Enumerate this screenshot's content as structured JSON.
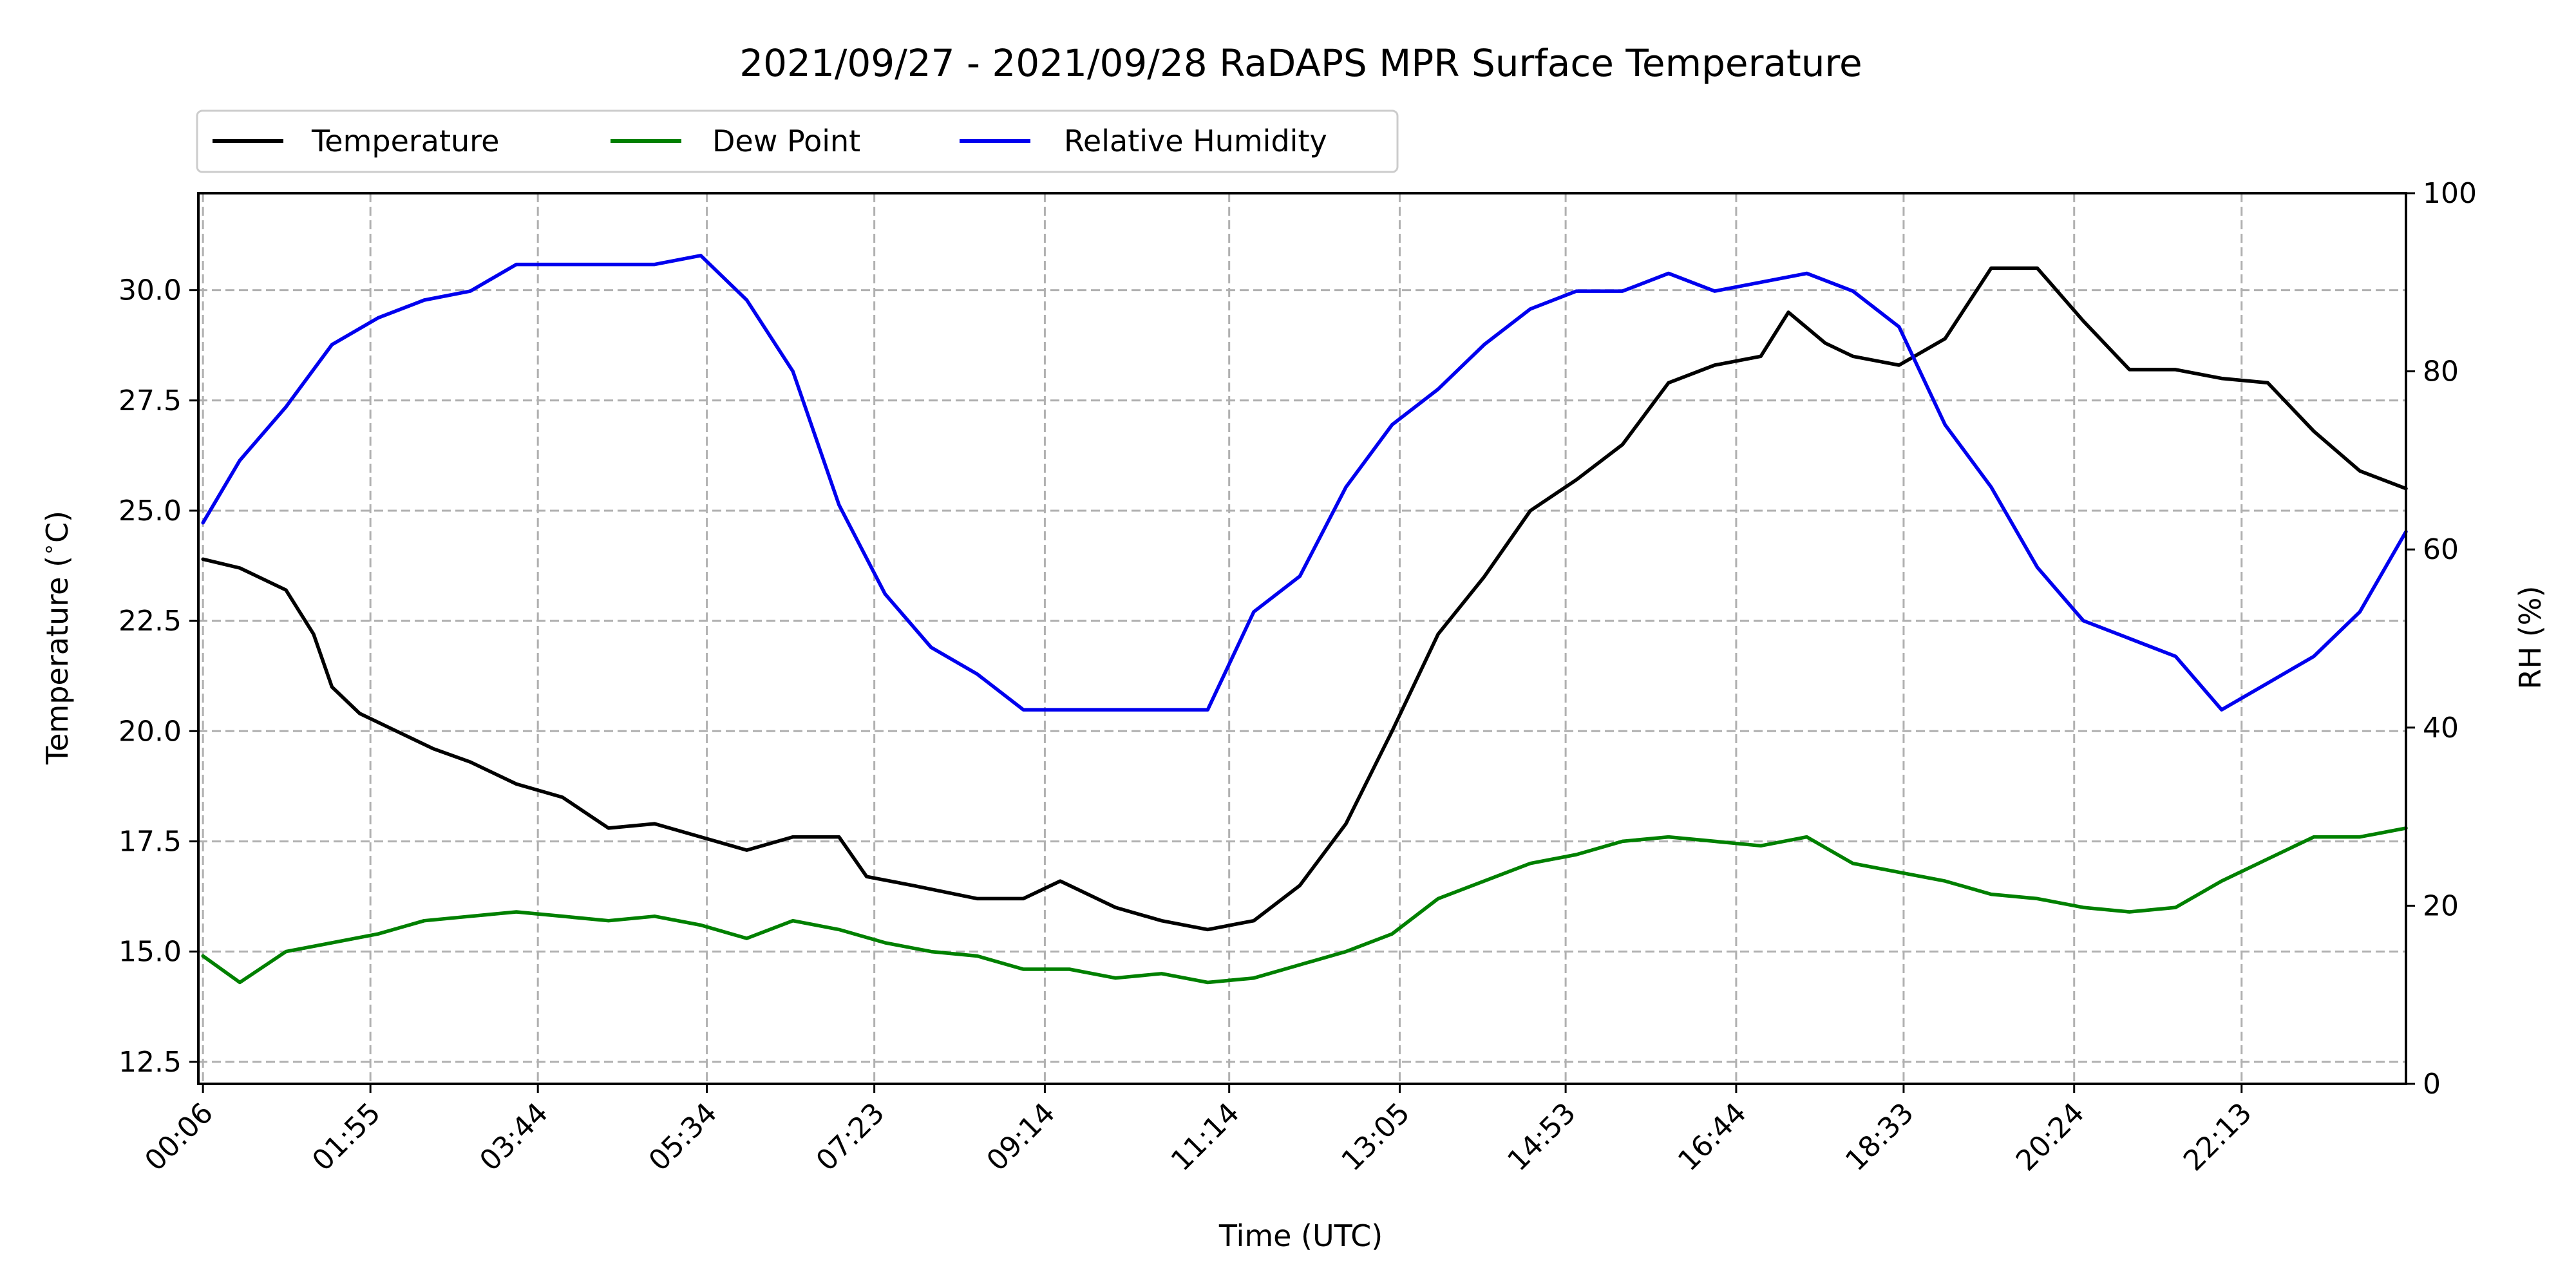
{
  "chart_data": {
    "type": "line",
    "title": "2021/09/27 - 2021/09/28 RaDAPS MPR Surface Temperature",
    "xlabel": "Time (UTC)",
    "ylabel": "Temperature ($^\\circ$C)",
    "ylabel_right": "RH (%)",
    "xticks": [
      "00:06",
      "01:55",
      "03:44",
      "05:34",
      "07:23",
      "09:14",
      "11:14",
      "13:05",
      "14:53",
      "16:44",
      "18:33",
      "20:24",
      "22:13"
    ],
    "xtick_hours": [
      0.1,
      1.9167,
      3.7333,
      5.5667,
      7.3833,
      9.2333,
      11.2333,
      13.0833,
      14.8833,
      16.7333,
      18.55,
      20.4,
      22.2167
    ],
    "xlim_hours": [
      0.05,
      24.0
    ],
    "ylim": [
      12.0,
      32.2
    ],
    "yticks": [
      "12.5",
      "15.0",
      "17.5",
      "20.0",
      "22.5",
      "25.0",
      "27.5",
      "30.0"
    ],
    "ylim_right": [
      0,
      100
    ],
    "yticks_right": [
      "0",
      "20",
      "40",
      "60",
      "80",
      "100"
    ],
    "grid": true,
    "legend_placement": "top-left, above the axes",
    "series": [
      {
        "name": "Temperature",
        "axis": "left",
        "color": "#000000",
        "x": [
          0.1,
          0.5,
          1.0,
          1.3,
          1.5,
          1.8,
          2.2,
          2.6,
          3.0,
          3.5,
          4.0,
          4.5,
          5.0,
          5.5,
          6.0,
          6.5,
          7.0,
          7.3,
          7.8,
          8.5,
          9.0,
          9.4,
          10.0,
          10.5,
          11.0,
          11.5,
          12.0,
          12.5,
          13.0,
          13.5,
          14.0,
          14.5,
          15.0,
          15.5,
          16.0,
          16.5,
          17.0,
          17.3,
          17.7,
          18.0,
          18.5,
          19.0,
          19.5,
          20.0,
          20.5,
          21.0,
          21.5,
          22.0,
          22.5,
          23.0,
          23.5,
          24.0
        ],
        "y": [
          23.9,
          23.7,
          23.2,
          22.2,
          21.0,
          20.4,
          20.0,
          19.6,
          19.3,
          18.8,
          18.5,
          17.8,
          17.9,
          17.6,
          17.3,
          17.6,
          17.6,
          16.7,
          16.5,
          16.2,
          16.2,
          16.6,
          16.0,
          15.7,
          15.5,
          15.7,
          16.5,
          17.9,
          20.0,
          22.2,
          23.5,
          25.0,
          25.7,
          26.5,
          27.9,
          28.3,
          28.5,
          29.5,
          28.8,
          28.5,
          28.3,
          28.9,
          30.5,
          30.5,
          29.3,
          28.2,
          28.2,
          28.0,
          27.9,
          26.8,
          25.9,
          25.5
        ]
      },
      {
        "name": "Dew Point",
        "axis": "left",
        "color": "#008000",
        "x": [
          0.1,
          0.5,
          1.0,
          1.5,
          2.0,
          2.5,
          3.0,
          3.5,
          4.0,
          4.5,
          5.0,
          5.5,
          6.0,
          6.5,
          7.0,
          7.5,
          8.0,
          8.5,
          9.0,
          9.5,
          10.0,
          10.5,
          11.0,
          11.5,
          12.0,
          12.5,
          13.0,
          13.5,
          14.0,
          14.5,
          15.0,
          15.5,
          16.0,
          16.5,
          17.0,
          17.5,
          18.0,
          18.5,
          19.0,
          19.5,
          20.0,
          20.5,
          21.0,
          21.5,
          22.0,
          22.5,
          23.0,
          23.5,
          24.0
        ],
        "y": [
          14.9,
          14.3,
          15.0,
          15.2,
          15.4,
          15.7,
          15.8,
          15.9,
          15.8,
          15.7,
          15.8,
          15.6,
          15.3,
          15.7,
          15.5,
          15.2,
          15.0,
          14.9,
          14.6,
          14.6,
          14.4,
          14.5,
          14.3,
          14.4,
          14.7,
          15.0,
          15.4,
          16.2,
          16.6,
          17.0,
          17.2,
          17.5,
          17.6,
          17.5,
          17.4,
          17.6,
          17.0,
          16.8,
          16.6,
          16.3,
          16.2,
          16.0,
          15.9,
          16.0,
          16.6,
          17.1,
          17.6,
          17.6,
          17.8
        ]
      },
      {
        "name": "Relative Humidity",
        "axis": "right",
        "color": "#0000ee",
        "x": [
          0.1,
          0.5,
          1.0,
          1.5,
          2.0,
          2.5,
          3.0,
          3.5,
          4.0,
          4.5,
          5.0,
          5.5,
          6.0,
          6.5,
          7.0,
          7.5,
          8.0,
          8.5,
          9.0,
          9.5,
          10.0,
          10.5,
          11.0,
          11.5,
          12.0,
          12.5,
          13.0,
          13.5,
          14.0,
          14.5,
          15.0,
          15.5,
          16.0,
          16.5,
          17.0,
          17.5,
          18.0,
          18.5,
          19.0,
          19.5,
          20.0,
          20.5,
          21.0,
          21.5,
          22.0,
          22.5,
          23.0,
          23.5,
          24.0
        ],
        "y": [
          63.0,
          70.0,
          76.0,
          83.0,
          86.0,
          88.0,
          89.0,
          92.0,
          92.0,
          92.0,
          92.0,
          93.0,
          88.0,
          80.0,
          65.0,
          55.0,
          49.0,
          46.0,
          42.0,
          42.0,
          42.0,
          42.0,
          42.0,
          53.0,
          57.0,
          67.0,
          74.0,
          78.0,
          83.0,
          87.0,
          89.0,
          89.0,
          91.0,
          89.0,
          90.0,
          91.0,
          89.0,
          85.0,
          74.0,
          67.0,
          58.0,
          52.0,
          50.0,
          48.0,
          42.0,
          45.0,
          48.0,
          53.0,
          62.0
        ]
      }
    ]
  }
}
